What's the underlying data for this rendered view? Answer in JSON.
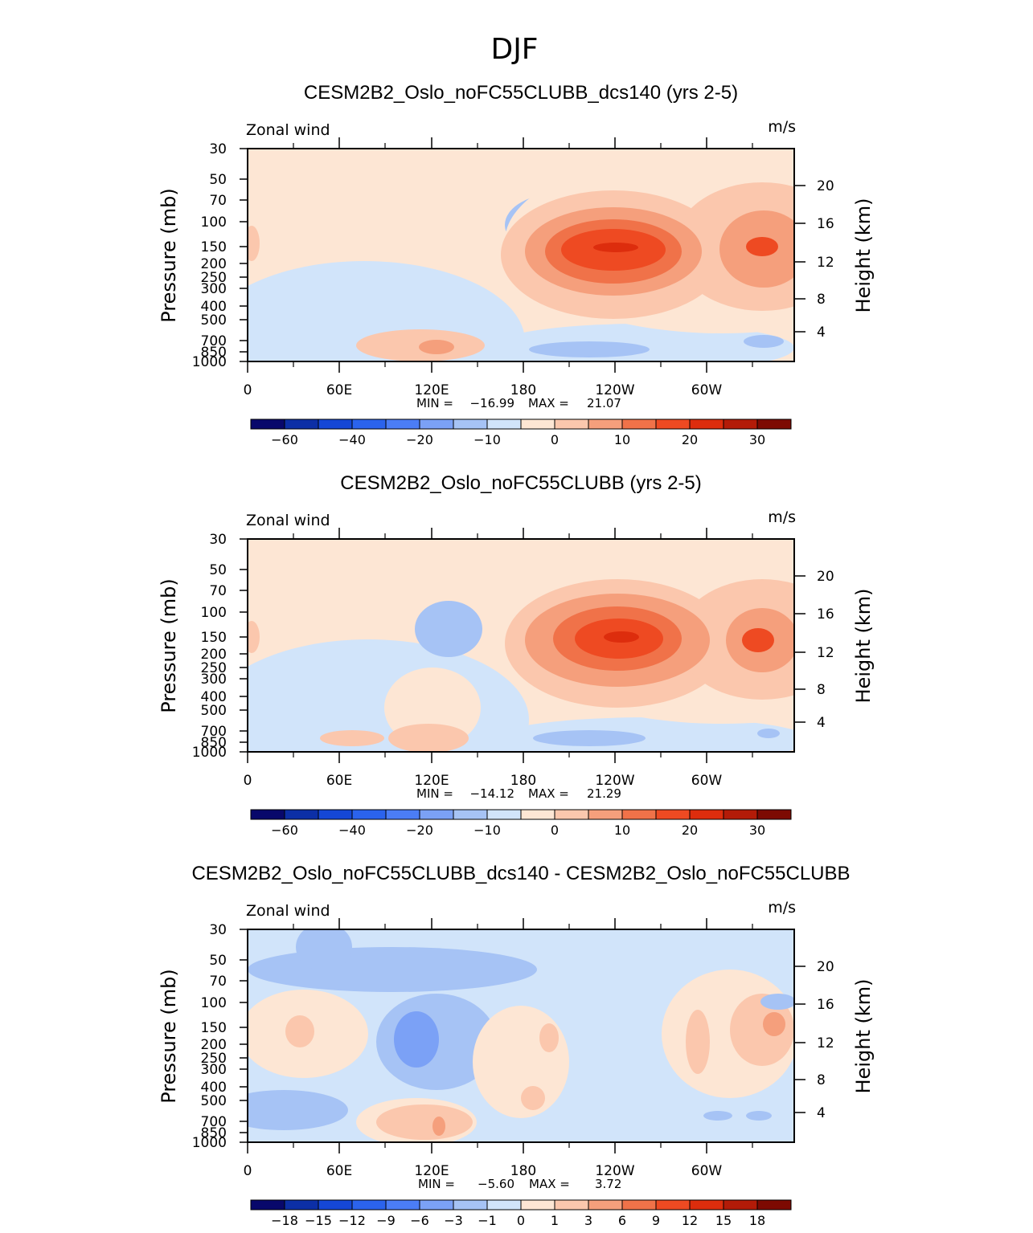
{
  "season_title": "DJF",
  "chart_data": [
    {
      "type": "heatmap",
      "title": "CESM2B2_Oslo_noFC55CLUBB_dcs140 (yrs 2-5)",
      "left_label": "Zonal wind",
      "units": "m/s",
      "ylabel": "Pressure (mb)",
      "ylabel_right": "Height (km)",
      "x_ticks": [
        "0",
        "60E",
        "120E",
        "180",
        "120W",
        "60W"
      ],
      "y_ticks": [
        "30",
        "50",
        "70",
        "100",
        "150",
        "200",
        "250",
        "300",
        "400",
        "500",
        "700",
        "850",
        "1000"
      ],
      "height_ticks": [
        "20",
        "16",
        "12",
        "8",
        "4"
      ],
      "min_label": "MIN =",
      "min_value": "−16.99",
      "max_label": "MAX =",
      "max_value": "21.07",
      "colorbar_labels": [
        "−60",
        "−40",
        "−20",
        "−10",
        "0",
        "10",
        "20",
        "30"
      ],
      "colorbar_colors": [
        "#08086b",
        "#0c2fa6",
        "#1547d6",
        "#2b63ed",
        "#4b7df6",
        "#7ba1f6",
        "#a6c3f5",
        "#d1e4fa",
        "#fde6d4",
        "#fbc7ad",
        "#f59f7c",
        "#f07249",
        "#ee4a22",
        "#dd2d0d",
        "#b31b08",
        "#7d0a02"
      ],
      "blobs": [
        {
          "color": "#d1e4fa",
          "cx": 145,
          "cy": 240,
          "rx": 200,
          "ry": 100
        },
        {
          "color": "#a6c3f5",
          "cx": 390,
          "cy": 95,
          "rx": 70,
          "ry": 40
        },
        {
          "color": "#7ba1f6",
          "cx": 378,
          "cy": 93,
          "rx": 25,
          "ry": 16
        },
        {
          "color": "#d1e4fa",
          "cx": 490,
          "cy": 248,
          "rx": 190,
          "ry": 30
        },
        {
          "color": "#fde6d4",
          "cx": 590,
          "cy": 115,
          "rx": 270,
          "ry": 115
        },
        {
          "color": "#fbc7ad",
          "cx": 455,
          "cy": 132,
          "rx": 140,
          "ry": 80
        },
        {
          "color": "#fbc7ad",
          "cx": 640,
          "cy": 122,
          "rx": 110,
          "ry": 80
        },
        {
          "color": "#f59f7c",
          "cx": 455,
          "cy": 128,
          "rx": 110,
          "ry": 55
        },
        {
          "color": "#f59f7c",
          "cx": 642,
          "cy": 125,
          "rx": 55,
          "ry": 48
        },
        {
          "color": "#f07249",
          "cx": 455,
          "cy": 128,
          "rx": 85,
          "ry": 40
        },
        {
          "color": "#ee4a22",
          "cx": 455,
          "cy": 126,
          "rx": 65,
          "ry": 26
        },
        {
          "color": "#ee4a22",
          "cx": 640,
          "cy": 122,
          "rx": 20,
          "ry": 12
        },
        {
          "color": "#dd2d0d",
          "cx": 458,
          "cy": 123,
          "rx": 28,
          "ry": 6
        },
        {
          "color": "#fbc7ad",
          "cx": 215,
          "cy": 245,
          "rx": 80,
          "ry": 20
        },
        {
          "color": "#f59f7c",
          "cx": 235,
          "cy": 247,
          "rx": 22,
          "ry": 9
        },
        {
          "color": "#a6c3f5",
          "cx": 425,
          "cy": 250,
          "rx": 75,
          "ry": 10
        },
        {
          "color": "#a6c3f5",
          "cx": 642,
          "cy": 240,
          "rx": 25,
          "ry": 8
        },
        {
          "color": "#fbc7ad",
          "cx": 5,
          "cy": 118,
          "rx": 10,
          "ry": 22
        }
      ]
    },
    {
      "type": "heatmap",
      "title": "CESM2B2_Oslo_noFC55CLUBB (yrs 2-5)",
      "left_label": "Zonal wind",
      "units": "m/s",
      "ylabel": "Pressure (mb)",
      "ylabel_right": "Height (km)",
      "x_ticks": [
        "0",
        "60E",
        "120E",
        "180",
        "120W",
        "60W"
      ],
      "y_ticks": [
        "30",
        "50",
        "70",
        "100",
        "150",
        "200",
        "250",
        "300",
        "400",
        "500",
        "700",
        "850",
        "1000"
      ],
      "height_ticks": [
        "20",
        "16",
        "12",
        "8",
        "4"
      ],
      "min_label": "MIN =",
      "min_value": "−14.12",
      "max_label": "MAX =",
      "max_value": "21.29",
      "colorbar_labels": [
        "−60",
        "−40",
        "−20",
        "−10",
        "0",
        "10",
        "20",
        "30"
      ],
      "colorbar_colors": [
        "#08086b",
        "#0c2fa6",
        "#1547d6",
        "#2b63ed",
        "#4b7df6",
        "#7ba1f6",
        "#a6c3f5",
        "#d1e4fa",
        "#fde6d4",
        "#fbc7ad",
        "#f59f7c",
        "#f07249",
        "#ee4a22",
        "#dd2d0d",
        "#b31b08",
        "#7d0a02"
      ],
      "blobs": [
        {
          "color": "#d1e4fa",
          "cx": 150,
          "cy": 225,
          "rx": 200,
          "ry": 100
        },
        {
          "color": "#a6c3f5",
          "cx": 250,
          "cy": 112,
          "rx": 42,
          "ry": 35
        },
        {
          "color": "#fde6d4",
          "cx": 230,
          "cy": 210,
          "rx": 60,
          "ry": 50
        },
        {
          "color": "#d1e4fa",
          "cx": 500,
          "cy": 250,
          "rx": 200,
          "ry": 28
        },
        {
          "color": "#fde6d4",
          "cx": 590,
          "cy": 118,
          "rx": 270,
          "ry": 112
        },
        {
          "color": "#fbc7ad",
          "cx": 460,
          "cy": 130,
          "rx": 140,
          "ry": 80
        },
        {
          "color": "#fbc7ad",
          "cx": 640,
          "cy": 125,
          "rx": 105,
          "ry": 75
        },
        {
          "color": "#f59f7c",
          "cx": 460,
          "cy": 126,
          "rx": 115,
          "ry": 58
        },
        {
          "color": "#f59f7c",
          "cx": 640,
          "cy": 126,
          "rx": 45,
          "ry": 40
        },
        {
          "color": "#f07249",
          "cx": 460,
          "cy": 124,
          "rx": 80,
          "ry": 40
        },
        {
          "color": "#ee4a22",
          "cx": 635,
          "cy": 126,
          "rx": 20,
          "ry": 15
        },
        {
          "color": "#ee4a22",
          "cx": 462,
          "cy": 124,
          "rx": 55,
          "ry": 25
        },
        {
          "color": "#dd2d0d",
          "cx": 465,
          "cy": 122,
          "rx": 22,
          "ry": 7
        },
        {
          "color": "#fbc7ad",
          "cx": 225,
          "cy": 248,
          "rx": 50,
          "ry": 18
        },
        {
          "color": "#fbc7ad",
          "cx": 130,
          "cy": 248,
          "rx": 40,
          "ry": 10
        },
        {
          "color": "#a6c3f5",
          "cx": 425,
          "cy": 248,
          "rx": 70,
          "ry": 10
        },
        {
          "color": "#a6c3f5",
          "cx": 648,
          "cy": 242,
          "rx": 14,
          "ry": 6
        },
        {
          "color": "#fbc7ad",
          "cx": 5,
          "cy": 122,
          "rx": 10,
          "ry": 20
        }
      ]
    },
    {
      "type": "heatmap",
      "title": "CESM2B2_Oslo_noFC55CLUBB_dcs140 - CESM2B2_Oslo_noFC55CLUBB",
      "left_label": "Zonal wind",
      "units": "m/s",
      "ylabel": "Pressure (mb)",
      "ylabel_right": "Height (km)",
      "x_ticks": [
        "0",
        "60E",
        "120E",
        "180",
        "120W",
        "60W"
      ],
      "y_ticks": [
        "30",
        "50",
        "70",
        "100",
        "150",
        "200",
        "250",
        "300",
        "400",
        "500",
        "700",
        "850",
        "1000"
      ],
      "height_ticks": [
        "20",
        "16",
        "12",
        "8",
        "4"
      ],
      "min_label": "MIN =",
      "min_value": "−5.60",
      "max_label": "MAX =",
      "max_value": "3.72",
      "colorbar_labels": [
        "−18",
        "−15",
        "−12",
        "−9",
        "−6",
        "−3",
        "−1",
        "0",
        "1",
        "3",
        "6",
        "9",
        "12",
        "15",
        "18"
      ],
      "colorbar_colors": [
        "#08086b",
        "#0c2fa6",
        "#1547d6",
        "#2b63ed",
        "#4b7df6",
        "#7ba1f6",
        "#a6c3f5",
        "#d1e4fa",
        "#fde6d4",
        "#fbc7ad",
        "#f59f7c",
        "#f07249",
        "#ee4a22",
        "#dd2d0d",
        "#b31b08",
        "#7d0a02"
      ],
      "blobs": [
        {
          "color": "#a6c3f5",
          "cx": 180,
          "cy": 50,
          "rx": 180,
          "ry": 28
        },
        {
          "color": "#a6c3f5",
          "cx": 95,
          "cy": 22,
          "rx": 35,
          "ry": 30
        },
        {
          "color": "#fde6d4",
          "cx": 70,
          "cy": 130,
          "rx": 80,
          "ry": 55
        },
        {
          "color": "#fbc7ad",
          "cx": 65,
          "cy": 127,
          "rx": 18,
          "ry": 20
        },
        {
          "color": "#a6c3f5",
          "cx": 235,
          "cy": 140,
          "rx": 75,
          "ry": 60
        },
        {
          "color": "#7ba1f6",
          "cx": 210,
          "cy": 137,
          "rx": 28,
          "ry": 35
        },
        {
          "color": "#fde6d4",
          "cx": 340,
          "cy": 165,
          "rx": 60,
          "ry": 70
        },
        {
          "color": "#fbc7ad",
          "cx": 375,
          "cy": 135,
          "rx": 12,
          "ry": 18
        },
        {
          "color": "#fbc7ad",
          "cx": 355,
          "cy": 210,
          "rx": 15,
          "ry": 15
        },
        {
          "color": "#fde6d4",
          "cx": 210,
          "cy": 240,
          "rx": 75,
          "ry": 30
        },
        {
          "color": "#fbc7ad",
          "cx": 220,
          "cy": 240,
          "rx": 60,
          "ry": 22
        },
        {
          "color": "#f59f7c",
          "cx": 238,
          "cy": 245,
          "rx": 8,
          "ry": 12
        },
        {
          "color": "#a6c3f5",
          "cx": 45,
          "cy": 225,
          "rx": 80,
          "ry": 25
        },
        {
          "color": "#fde6d4",
          "cx": 600,
          "cy": 130,
          "rx": 85,
          "ry": 80
        },
        {
          "color": "#fbc7ad",
          "cx": 640,
          "cy": 125,
          "rx": 40,
          "ry": 45
        },
        {
          "color": "#f59f7c",
          "cx": 655,
          "cy": 118,
          "rx": 14,
          "ry": 15
        },
        {
          "color": "#fbc7ad",
          "cx": 560,
          "cy": 140,
          "rx": 15,
          "ry": 40
        },
        {
          "color": "#a6c3f5",
          "cx": 585,
          "cy": 232,
          "rx": 18,
          "ry": 6
        },
        {
          "color": "#a6c3f5",
          "cx": 636,
          "cy": 232,
          "rx": 16,
          "ry": 6
        },
        {
          "color": "#a6c3f5",
          "cx": 660,
          "cy": 90,
          "rx": 22,
          "ry": 10
        }
      ]
    }
  ]
}
